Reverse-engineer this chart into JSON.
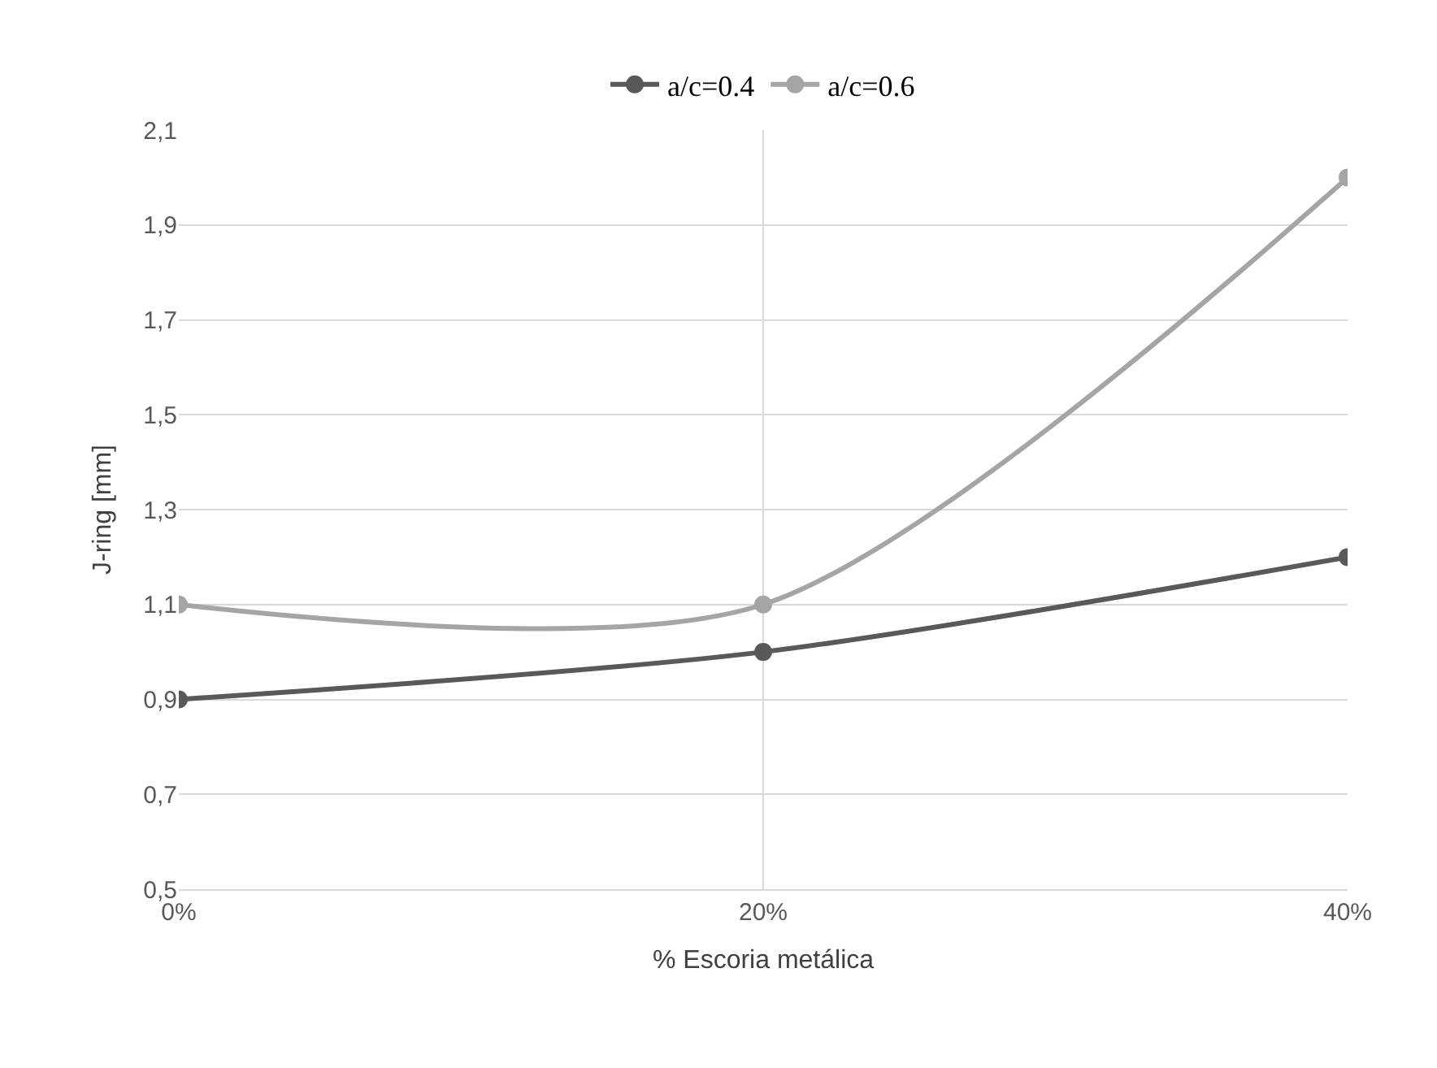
{
  "chart_data": {
    "type": "line",
    "xlabel": "% Escoria metálica",
    "ylabel": "J-ring [mm]",
    "x": [
      0,
      20,
      40
    ],
    "series": [
      {
        "name": "a/c=0.4",
        "color": "#595959",
        "values": [
          0.9,
          1.0,
          1.2
        ]
      },
      {
        "name": "a/c=0.6",
        "color": "#a5a5a5",
        "values": [
          1.1,
          1.1,
          2.0
        ]
      }
    ],
    "xlim": [
      0,
      40
    ],
    "xticks": [
      {
        "value": 0,
        "label": "0%"
      },
      {
        "value": 20,
        "label": "20%"
      },
      {
        "value": 40,
        "label": "40%"
      }
    ],
    "ylim": [
      0.5,
      2.1
    ],
    "yticks": [
      {
        "value": 0.5,
        "label": "0,5"
      },
      {
        "value": 0.7,
        "label": "0,7"
      },
      {
        "value": 0.9,
        "label": "0,9"
      },
      {
        "value": 1.1,
        "label": "1,1"
      },
      {
        "value": 1.3,
        "label": "1,3"
      },
      {
        "value": 1.5,
        "label": "1,5"
      },
      {
        "value": 1.7,
        "label": "1,7"
      },
      {
        "value": 1.9,
        "label": "1,9"
      },
      {
        "value": 2.1,
        "label": "2,1"
      }
    ],
    "grid": true,
    "legend": "top",
    "marker": "circle",
    "line_style": "solid"
  }
}
